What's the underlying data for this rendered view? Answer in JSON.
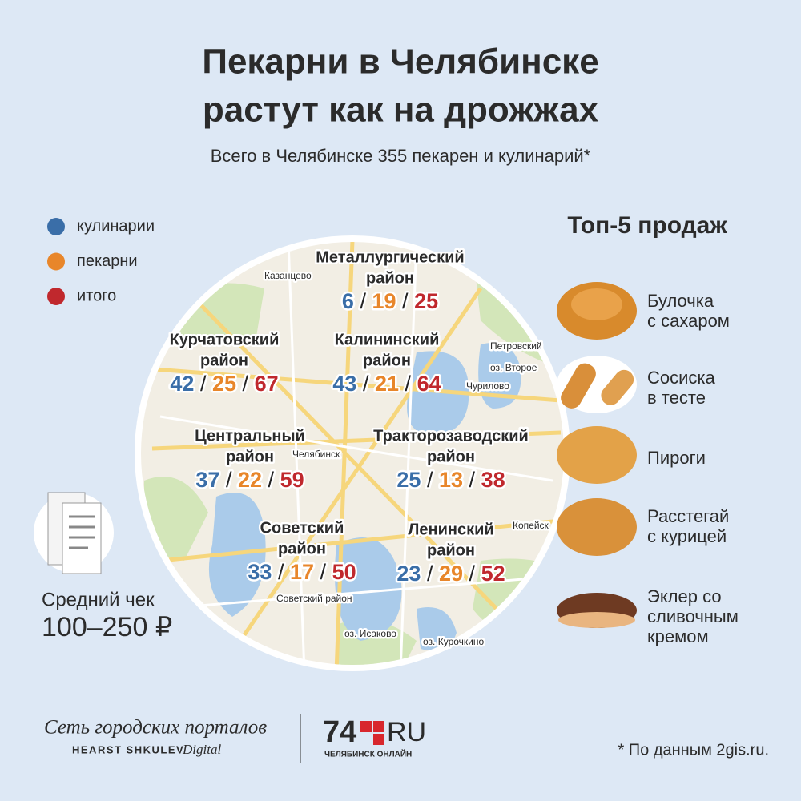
{
  "header": {
    "title": [
      "Пекарни в Челябинске",
      "растут как на дрожжах"
    ],
    "subtitle": "Всего в Челябинске 355 пекарен и кулинарий*"
  },
  "legend": [
    "кулинарии",
    "пекарни",
    "итого"
  ],
  "separator": "/",
  "districts": [
    {
      "name": [
        "Металлургический",
        "район"
      ],
      "culinary": 6,
      "bakery": 19,
      "total": 25
    },
    {
      "name": [
        "Курчатовский",
        "район"
      ],
      "culinary": 42,
      "bakery": 25,
      "total": 67
    },
    {
      "name": [
        "Калининский",
        "район"
      ],
      "culinary": 43,
      "bakery": 21,
      "total": 64
    },
    {
      "name": [
        "Центральный",
        "район"
      ],
      "culinary": 37,
      "bakery": 22,
      "total": 59
    },
    {
      "name": [
        "Тракторозаводский",
        "район"
      ],
      "culinary": 25,
      "bakery": 13,
      "total": 38
    },
    {
      "name": [
        "Советский",
        "район"
      ],
      "culinary": 33,
      "bakery": 17,
      "total": 50
    },
    {
      "name": [
        "Ленинский",
        "район"
      ],
      "culinary": 23,
      "bakery": 29,
      "total": 52
    }
  ],
  "map_labels": [
    "Казанцево",
    "Челябинск",
    "Копейск",
    "Петровский",
    "Чурилово",
    "оз. Второе",
    "Советский район",
    "оз. Курочкино",
    "оз. Исаково"
  ],
  "top5": {
    "title": "Топ-5 продаж",
    "items": [
      [
        "Булочка",
        "с сахаром"
      ],
      [
        "Сосиска",
        "в тесте"
      ],
      [
        "Пироги"
      ],
      [
        "Расстегай",
        "с курицей"
      ],
      [
        "Эклер со",
        "сливочным",
        "кремом"
      ]
    ]
  },
  "check": {
    "label": "Средний чек",
    "value": "100–250 ₽"
  },
  "footer": {
    "network": "Сеть городских порталов",
    "hearst": "HEARST SHKULEV",
    "digital": "Digital",
    "logo_num": "74",
    "logo_ru": "RU",
    "logo_city": "ЧЕЛЯБИНСК ОНЛАЙН",
    "source": "* По данным 2gis.ru."
  }
}
